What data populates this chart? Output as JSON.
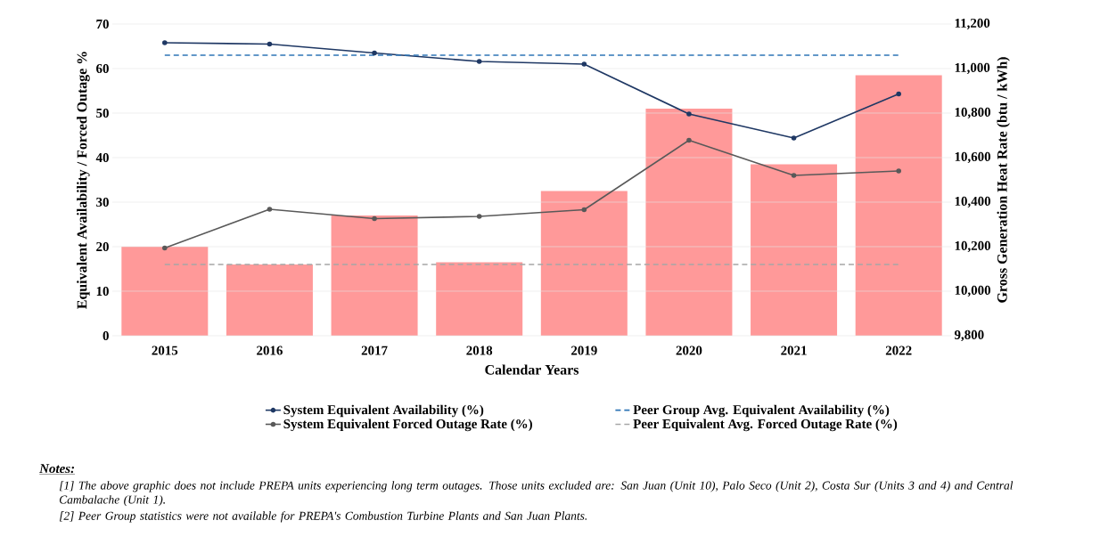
{
  "chart_data": {
    "type": "bar",
    "categories": [
      "2015",
      "2016",
      "2017",
      "2018",
      "2019",
      "2020",
      "2021",
      "2022"
    ],
    "series": [
      {
        "axis": "y2",
        "color": "#ff9999",
        "values": [
          10200,
          10120,
          10340,
          10130,
          10450,
          10820,
          10570,
          10970
        ]
      },
      {
        "type": "line",
        "axis": "y",
        "name": "System Equivalent Availability (%)",
        "color": "#1f3864",
        "marker": "circle",
        "line_style": "solid",
        "values": [
          65.8,
          65.5,
          63.5,
          61.6,
          61.0,
          49.8,
          44.4,
          54.3
        ]
      },
      {
        "type": "line",
        "axis": "y",
        "name": "Peer Group Avg. Equivalent Availability (%)",
        "color": "#2e75b6",
        "marker": "none",
        "line_style": "dashed",
        "values": [
          63,
          63,
          63,
          63,
          63,
          63,
          63,
          63
        ]
      },
      {
        "type": "line",
        "axis": "y",
        "name": "System Equivalent Forced Outage Rate (%)",
        "color": "#595959",
        "marker": "circle",
        "line_style": "solid",
        "values": [
          19.7,
          28.4,
          26.3,
          26.8,
          28.3,
          43.9,
          36.0,
          37.0
        ]
      },
      {
        "type": "line",
        "axis": "y",
        "name": "Peer Equivalent Avg. Forced Outage Rate (%)",
        "color": "#a6a6a6",
        "marker": "none",
        "line_style": "dashed",
        "values": [
          16,
          16,
          16,
          16,
          16,
          16,
          16,
          16
        ]
      }
    ],
    "xlabel": "Calendar Years",
    "ylabel": "Equivalent Availability / Forced Outage %",
    "y2label": "Gross Generation Heat Rate (btu / kWh)",
    "ylim": [
      0,
      70
    ],
    "yticks": [
      0,
      10,
      20,
      30,
      40,
      50,
      60,
      70
    ],
    "y2lim": [
      9800,
      11200
    ],
    "y2ticks": [
      {
        "value": 9800,
        "label": "9,800"
      },
      {
        "value": 10000,
        "label": "10,000"
      },
      {
        "value": 10200,
        "label": "10,200"
      },
      {
        "value": 10400,
        "label": "10,400"
      },
      {
        "value": 10600,
        "label": "10,600"
      },
      {
        "value": 10800,
        "label": "10,800"
      },
      {
        "value": 11000,
        "label": "11,000"
      },
      {
        "value": 11200,
        "label": "11,200"
      }
    ],
    "grid": "y",
    "legend": "bottom",
    "annotations": [
      "Notes:",
      "[1] The above graphic does not include PREPA units experiencing long term outages. Those units excluded are: San Juan (Unit  10), Palo Seco (Unit 2), Costa Sur (Units 3 and 4) and Central Cambalache (Unit 1).",
      "[2] Peer Group statistics were not available for PREPA's Combustion Turbine Plants and San Juan Plants."
    ]
  }
}
